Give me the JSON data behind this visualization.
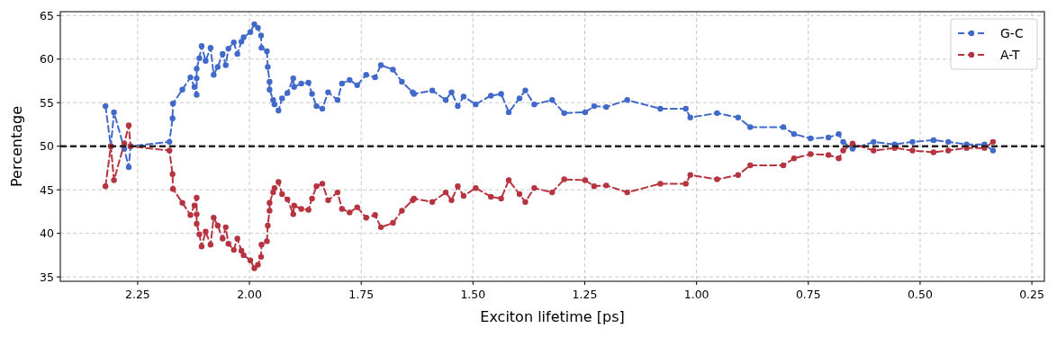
{
  "chart_data": {
    "type": "line",
    "xlabel": "Exciton lifetime [ps]",
    "ylabel": "Percentage",
    "xlim": [
      2.423,
      0.222
    ],
    "xticks": [
      {
        "value": 2.25,
        "label": "2.25"
      },
      {
        "value": 2.0,
        "label": "2.00"
      },
      {
        "value": 1.75,
        "label": "1.75"
      },
      {
        "value": 1.5,
        "label": "1.50"
      },
      {
        "value": 1.25,
        "label": "1.25"
      },
      {
        "value": 1.0,
        "label": "1.00"
      },
      {
        "value": 0.75,
        "label": "0.75"
      },
      {
        "value": 0.5,
        "label": "0.50"
      },
      {
        "value": 0.25,
        "label": "0.25"
      }
    ],
    "ylim": [
      34.5,
      65.44
    ],
    "yticks": [
      35,
      40,
      45,
      50,
      55,
      60,
      65
    ],
    "grid": true,
    "legend": "top right",
    "marker": "circle",
    "line_style": "dashed",
    "ref_lines": [
      {
        "axis": "y",
        "value": 50,
        "color": "#222222",
        "line_style": "dashed"
      }
    ],
    "x": [
      2.322,
      2.31,
      2.303,
      2.28,
      2.27,
      2.266,
      2.179,
      2.172,
      2.171,
      2.15,
      2.132,
      2.123,
      2.118,
      2.118,
      2.118,
      2.112,
      2.107,
      2.098,
      2.087,
      2.08,
      2.071,
      2.06,
      2.053,
      2.047,
      2.035,
      2.027,
      2.018,
      2.013,
      1.998,
      1.989,
      1.981,
      1.974,
      1.973,
      1.961,
      1.959,
      1.955,
      1.955,
      1.947,
      1.944,
      1.935,
      1.927,
      1.915,
      1.902,
      1.9,
      1.884,
      1.868,
      1.86,
      1.85,
      1.837,
      1.824,
      1.803,
      1.793,
      1.776,
      1.759,
      1.739,
      1.719,
      1.706,
      1.679,
      1.659,
      1.635,
      1.632,
      1.591,
      1.561,
      1.548,
      1.534,
      1.521,
      1.494,
      1.46,
      1.437,
      1.42,
      1.396,
      1.383,
      1.363,
      1.323,
      1.296,
      1.249,
      1.229,
      1.202,
      1.155,
      1.081,
      1.024,
      1.014,
      0.954,
      0.907,
      0.88,
      0.806,
      0.782,
      0.745,
      0.705,
      0.682,
      0.672,
      0.651,
      0.604,
      0.557,
      0.517,
      0.47,
      0.437,
      0.396,
      0.356,
      0.337
    ],
    "series": [
      {
        "name": "G-C",
        "color": "#4169c9",
        "values": [
          54.6,
          50.0,
          53.9,
          49.7,
          47.6,
          50.0,
          50.5,
          53.2,
          54.9,
          56.5,
          57.9,
          56.8,
          55.9,
          57.8,
          58.9,
          60.1,
          61.5,
          59.8,
          61.3,
          58.2,
          59.1,
          60.6,
          59.3,
          61.2,
          61.9,
          60.6,
          62.0,
          62.5,
          63.1,
          64.0,
          63.6,
          62.7,
          61.3,
          60.9,
          59.1,
          57.4,
          56.5,
          55.3,
          54.8,
          54.1,
          55.5,
          56.1,
          57.8,
          56.8,
          57.2,
          57.3,
          56.0,
          54.6,
          54.3,
          56.2,
          55.3,
          57.2,
          57.6,
          57.0,
          58.2,
          57.9,
          59.3,
          58.8,
          57.4,
          56.2,
          56.0,
          56.4,
          55.3,
          56.2,
          54.6,
          55.7,
          54.8,
          55.8,
          56.0,
          53.9,
          55.5,
          56.4,
          54.8,
          55.3,
          53.8,
          53.9,
          54.6,
          54.5,
          55.3,
          54.3,
          54.3,
          53.3,
          53.8,
          53.3,
          52.2,
          52.2,
          51.4,
          50.9,
          51.0,
          51.4,
          50.5,
          49.7,
          50.5,
          50.2,
          50.5,
          50.7,
          50.5,
          50.2,
          50.2,
          49.5
        ]
      },
      {
        "name": "A-T",
        "color": "#b5343f",
        "values": [
          45.4,
          50.0,
          46.1,
          50.3,
          52.4,
          50.0,
          49.5,
          46.8,
          45.1,
          43.5,
          42.1,
          43.2,
          44.1,
          42.2,
          41.1,
          39.9,
          38.5,
          40.2,
          38.7,
          41.8,
          40.9,
          39.4,
          40.7,
          38.8,
          38.1,
          39.4,
          38.0,
          37.5,
          36.9,
          36.0,
          36.4,
          37.3,
          38.7,
          39.1,
          40.9,
          42.6,
          43.5,
          44.7,
          45.2,
          45.9,
          44.5,
          43.9,
          42.2,
          43.2,
          42.8,
          42.7,
          44.0,
          45.4,
          45.7,
          43.8,
          44.7,
          42.8,
          42.4,
          43.0,
          41.8,
          42.1,
          40.7,
          41.2,
          42.6,
          43.8,
          44.0,
          43.6,
          44.7,
          43.8,
          45.4,
          44.3,
          45.2,
          44.2,
          44.0,
          46.1,
          44.5,
          43.6,
          45.2,
          44.7,
          46.2,
          46.1,
          45.4,
          45.5,
          44.7,
          45.7,
          45.7,
          46.7,
          46.2,
          46.7,
          47.8,
          47.8,
          48.6,
          49.1,
          49.0,
          48.6,
          49.5,
          50.3,
          49.5,
          49.8,
          49.5,
          49.3,
          49.5,
          49.8,
          49.8,
          50.5
        ]
      }
    ]
  }
}
